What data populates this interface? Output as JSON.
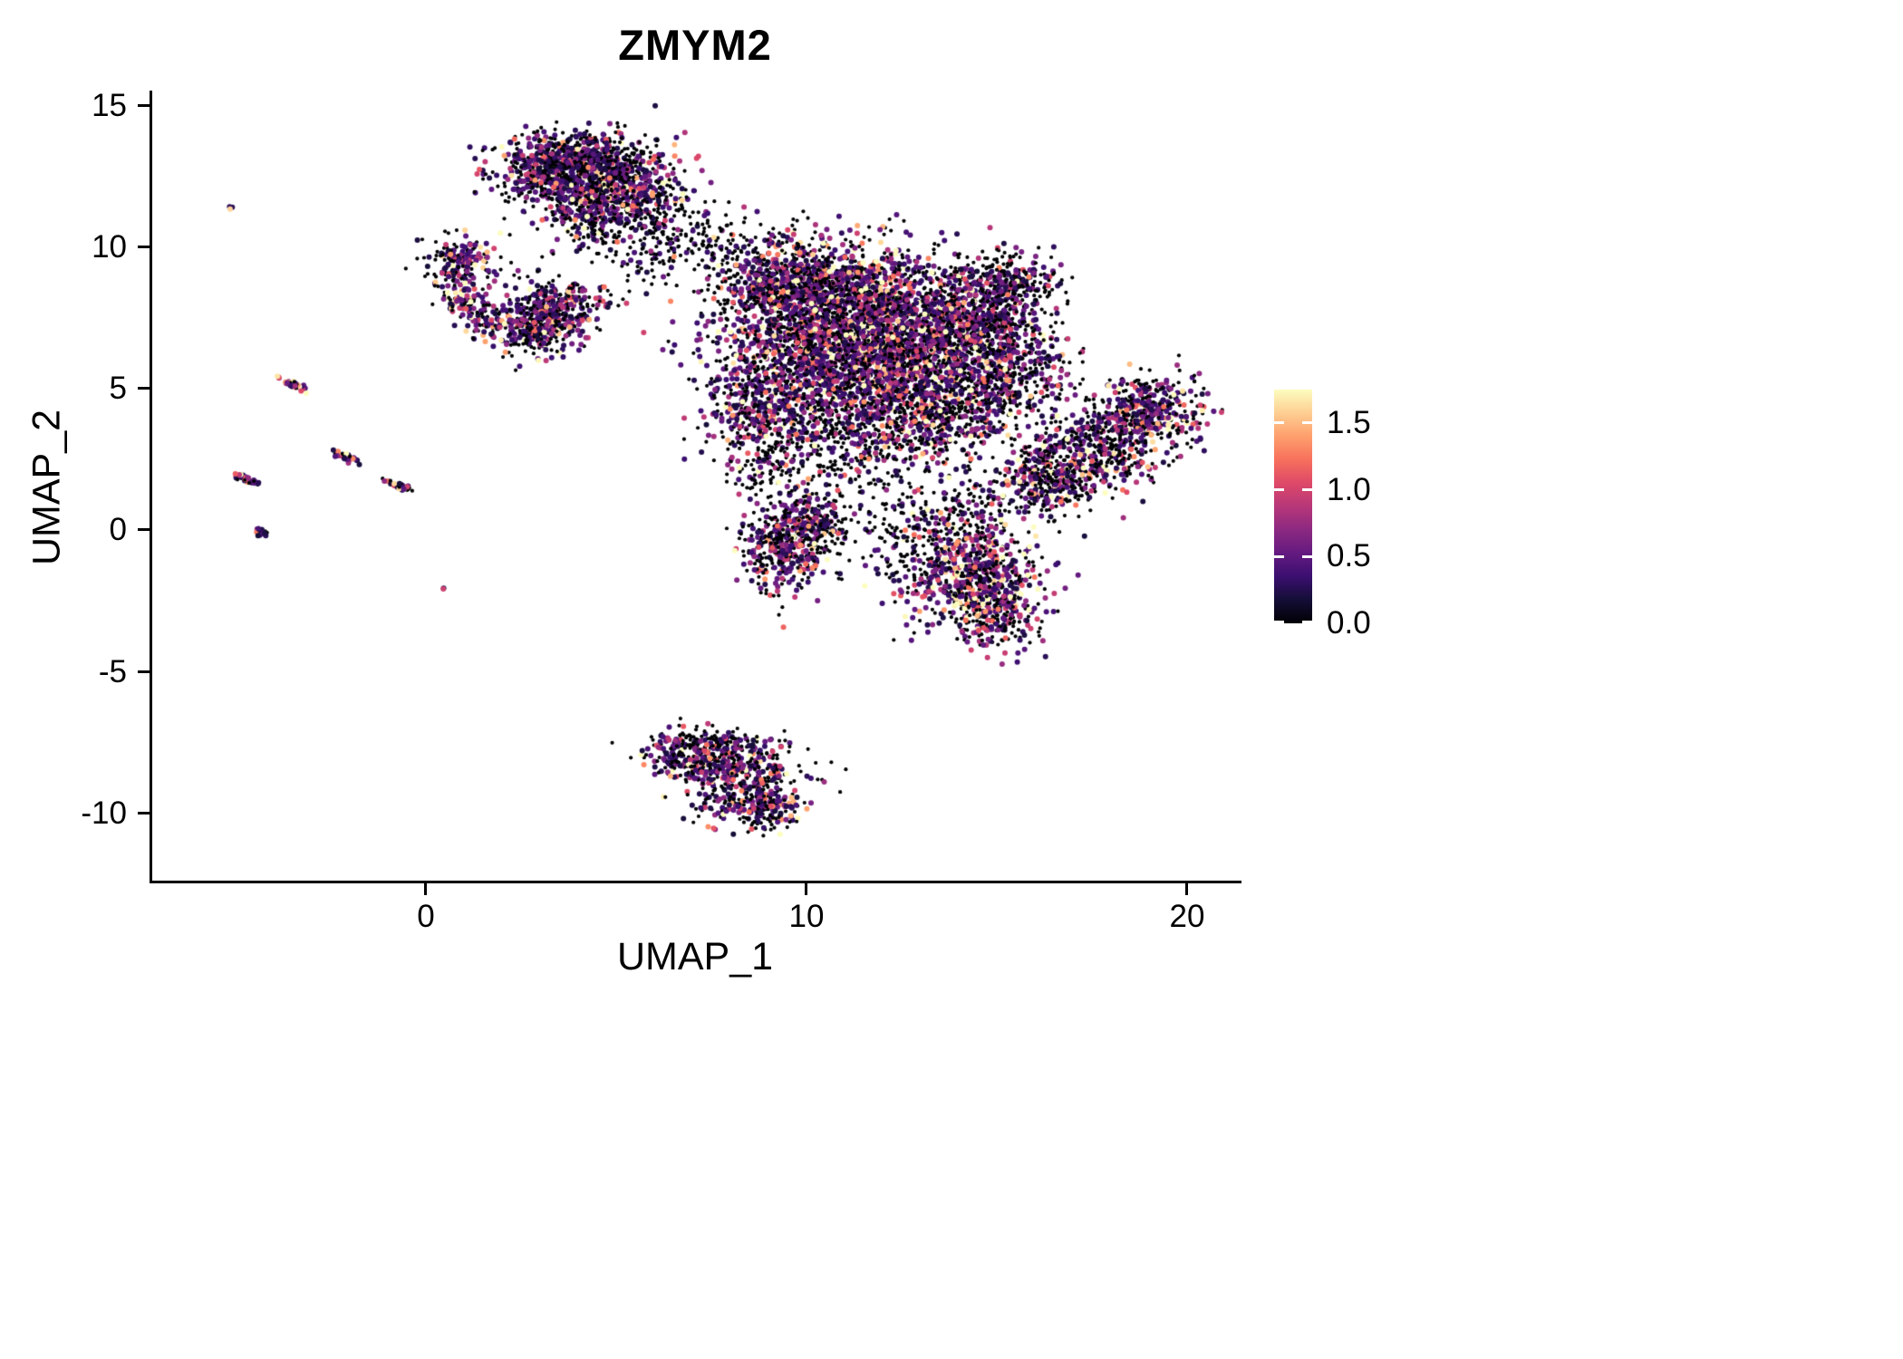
{
  "chart_data": {
    "type": "scatter",
    "title": "ZMYM2",
    "xlabel": "UMAP_1",
    "ylabel": "UMAP_2",
    "xlim": [
      -7.3,
      21.4
    ],
    "ylim": [
      -12.5,
      15.5
    ],
    "grid": false,
    "legend_position": "right",
    "xticks": [
      {
        "value": 0,
        "label": "0"
      },
      {
        "value": 10,
        "label": "10"
      },
      {
        "value": 20,
        "label": "20"
      }
    ],
    "yticks": [
      {
        "value": -10,
        "label": "-10"
      },
      {
        "value": -5,
        "label": "-5"
      },
      {
        "value": 0,
        "label": "0"
      },
      {
        "value": 5,
        "label": "5"
      },
      {
        "value": 10,
        "label": "10"
      },
      {
        "value": 15,
        "label": "15"
      }
    ],
    "colorbar": {
      "vmin": 0,
      "vmax": 1.75,
      "ticks": [
        {
          "value": 0.0,
          "label": "0.0"
        },
        {
          "value": 0.5,
          "label": "0.5"
        },
        {
          "value": 1.0,
          "label": "1.0"
        },
        {
          "value": 1.5,
          "label": "1.5"
        }
      ],
      "colormap": "magma",
      "colormap_stops": [
        [
          0.0,
          "#000004"
        ],
        [
          0.1,
          "#140e36"
        ],
        [
          0.2,
          "#3b0f70"
        ],
        [
          0.3,
          "#641a80"
        ],
        [
          0.4,
          "#8c2981"
        ],
        [
          0.5,
          "#b73779"
        ],
        [
          0.6,
          "#de4968"
        ],
        [
          0.7,
          "#f7705c"
        ],
        [
          0.8,
          "#fe9f6d"
        ],
        [
          0.9,
          "#fece92"
        ],
        [
          1.0,
          "#fcfdbf"
        ]
      ]
    },
    "point_style": {
      "zero_color": "#000004",
      "zero_radius": 2.1,
      "expr_radius": 3.0
    },
    "seed": 42,
    "clusters": [
      {
        "cx": 3.6,
        "cy": 12.6,
        "sx": 1.0,
        "sy": 0.65,
        "rot": -0.2,
        "n": 700,
        "p0": 0.45,
        "escale": 0.45
      },
      {
        "cx": 5.0,
        "cy": 11.9,
        "sx": 0.9,
        "sy": 0.8,
        "rot": 0.3,
        "n": 500,
        "p0": 0.5,
        "escale": 0.45
      },
      {
        "cx": 4.3,
        "cy": 13.2,
        "sx": 0.85,
        "sy": 0.4,
        "rot": 0,
        "n": 220,
        "p0": 0.5,
        "escale": 0.4
      },
      {
        "cx": 6.3,
        "cy": 10.6,
        "sx": 1.1,
        "sy": 0.6,
        "rot": -0.3,
        "n": 130,
        "p0": 0.75,
        "escale": 0.35
      },
      {
        "cx": 4.3,
        "cy": 10.7,
        "sx": 0.7,
        "sy": 0.6,
        "rot": 0,
        "n": 110,
        "p0": 0.7,
        "escale": 0.4
      },
      {
        "cx": 7.5,
        "cy": 10.0,
        "sx": 0.8,
        "sy": 0.5,
        "rot": 0,
        "n": 60,
        "p0": 0.8,
        "escale": 0.3
      },
      {
        "cx": 5.6,
        "cy": 9.3,
        "sx": 0.5,
        "sy": 0.6,
        "rot": 0,
        "n": 40,
        "p0": 0.7,
        "escale": 0.3
      },
      {
        "cx": 0.8,
        "cy": 9.4,
        "sx": 0.45,
        "sy": 0.45,
        "rot": 0,
        "n": 170,
        "p0": 0.45,
        "escale": 0.5
      },
      {
        "cx": 1.0,
        "cy": 8.0,
        "sx": 0.35,
        "sy": 0.35,
        "rot": 0,
        "n": 80,
        "p0": 0.4,
        "escale": 0.6
      },
      {
        "cx": 1.5,
        "cy": 7.3,
        "sx": 0.3,
        "sy": 0.3,
        "rot": 0,
        "n": 50,
        "p0": 0.4,
        "escale": 0.6
      },
      {
        "cx": 3.2,
        "cy": 7.6,
        "sx": 0.75,
        "sy": 0.6,
        "rot": 0.4,
        "n": 420,
        "p0": 0.45,
        "escale": 0.5
      },
      {
        "cx": 2.6,
        "cy": 6.9,
        "sx": 0.4,
        "sy": 0.35,
        "rot": 0,
        "n": 100,
        "p0": 0.5,
        "escale": 0.45
      },
      {
        "cx": 9.4,
        "cy": 8.6,
        "sx": 1.0,
        "sy": 0.9,
        "rot": 0,
        "n": 700,
        "p0": 0.5,
        "escale": 0.5
      },
      {
        "cx": 11.4,
        "cy": 8.2,
        "sx": 1.3,
        "sy": 1.0,
        "rot": 0,
        "n": 950,
        "p0": 0.45,
        "escale": 0.55
      },
      {
        "cx": 10.4,
        "cy": 6.2,
        "sx": 1.4,
        "sy": 1.1,
        "rot": 0,
        "n": 1100,
        "p0": 0.45,
        "escale": 0.5
      },
      {
        "cx": 12.6,
        "cy": 5.8,
        "sx": 1.3,
        "sy": 1.1,
        "rot": 0,
        "n": 950,
        "p0": 0.45,
        "escale": 0.55
      },
      {
        "cx": 13.9,
        "cy": 7.3,
        "sx": 0.9,
        "sy": 1.0,
        "rot": 0,
        "n": 550,
        "p0": 0.45,
        "escale": 0.55
      },
      {
        "cx": 15.3,
        "cy": 7.2,
        "sx": 0.7,
        "sy": 1.1,
        "rot": 0,
        "n": 260,
        "p0": 0.6,
        "escale": 0.5
      },
      {
        "cx": 15.2,
        "cy": 8.8,
        "sx": 0.7,
        "sy": 0.6,
        "rot": 0,
        "n": 200,
        "p0": 0.55,
        "escale": 0.5
      },
      {
        "cx": 8.8,
        "cy": 4.3,
        "sx": 0.8,
        "sy": 0.9,
        "rot": 0,
        "n": 380,
        "p0": 0.5,
        "escale": 0.5
      },
      {
        "cx": 10.9,
        "cy": 3.4,
        "sx": 1.1,
        "sy": 0.8,
        "rot": 0,
        "n": 320,
        "p0": 0.65,
        "escale": 0.45
      },
      {
        "cx": 13.3,
        "cy": 3.8,
        "sx": 1.0,
        "sy": 0.8,
        "rot": 0,
        "n": 380,
        "p0": 0.55,
        "escale": 0.5
      },
      {
        "cx": 14.9,
        "cy": 4.9,
        "sx": 0.6,
        "sy": 0.7,
        "rot": 0,
        "n": 180,
        "p0": 0.55,
        "escale": 0.5
      },
      {
        "cx": 16.2,
        "cy": 5.5,
        "sx": 0.5,
        "sy": 0.8,
        "rot": 0,
        "n": 90,
        "p0": 0.6,
        "escale": 0.5
      },
      {
        "cx": 12.0,
        "cy": 1.2,
        "sx": 1.3,
        "sy": 0.9,
        "rot": 0,
        "n": 160,
        "p0": 0.75,
        "escale": 0.4
      },
      {
        "cx": 14.2,
        "cy": 0.5,
        "sx": 0.8,
        "sy": 0.8,
        "rot": 0,
        "n": 120,
        "p0": 0.7,
        "escale": 0.45
      },
      {
        "cx": 9.0,
        "cy": 2.1,
        "sx": 0.6,
        "sy": 0.5,
        "rot": 0,
        "n": 80,
        "p0": 0.7,
        "escale": 0.4
      },
      {
        "cx": 9.3,
        "cy": -0.6,
        "sx": 0.55,
        "sy": 0.85,
        "rot": 0,
        "n": 380,
        "p0": 0.5,
        "escale": 0.5
      },
      {
        "cx": 10.1,
        "cy": 0.3,
        "sx": 0.5,
        "sy": 0.5,
        "rot": 0,
        "n": 140,
        "p0": 0.55,
        "escale": 0.45
      },
      {
        "cx": 12.5,
        "cy": -0.6,
        "sx": 1.2,
        "sy": 0.7,
        "rot": 0,
        "n": 100,
        "p0": 0.7,
        "escale": 0.45
      },
      {
        "cx": 14.3,
        "cy": -1.7,
        "sx": 0.9,
        "sy": 0.9,
        "rot": 0.3,
        "n": 650,
        "p0": 0.4,
        "escale": 0.6
      },
      {
        "cx": 15.0,
        "cy": -3.0,
        "sx": 0.55,
        "sy": 0.7,
        "rot": 0,
        "n": 180,
        "p0": 0.45,
        "escale": 0.55
      },
      {
        "cx": 17.6,
        "cy": 2.9,
        "sx": 1.6,
        "sy": 0.75,
        "rot": 0.55,
        "n": 750,
        "p0": 0.5,
        "escale": 0.55
      },
      {
        "cx": 18.9,
        "cy": 4.3,
        "sx": 0.55,
        "sy": 0.5,
        "rot": 0,
        "n": 220,
        "p0": 0.45,
        "escale": 0.55
      },
      {
        "cx": 16.4,
        "cy": 1.8,
        "sx": 0.6,
        "sy": 0.5,
        "rot": 0.4,
        "n": 180,
        "p0": 0.55,
        "escale": 0.5
      },
      {
        "cx": 7.1,
        "cy": -8.0,
        "sx": 0.75,
        "sy": 0.45,
        "rot": -0.1,
        "n": 280,
        "p0": 0.55,
        "escale": 0.5
      },
      {
        "cx": 8.3,
        "cy": -9.0,
        "sx": 0.75,
        "sy": 0.75,
        "rot": 0.5,
        "n": 380,
        "p0": 0.5,
        "escale": 0.5
      },
      {
        "cx": 8.9,
        "cy": -9.9,
        "sx": 0.4,
        "sy": 0.35,
        "rot": 0,
        "n": 90,
        "p0": 0.45,
        "escale": 0.55
      },
      {
        "cx": 7.6,
        "cy": -7.5,
        "sx": 0.9,
        "sy": 0.15,
        "rot": 0,
        "n": 70,
        "p0": 0.55,
        "escale": 0.5
      },
      {
        "cx": -3.55,
        "cy": 5.1,
        "sx": 0.22,
        "sy": 0.05,
        "rot": -0.5,
        "n": 45,
        "p0": 0.25,
        "escale": 0.7
      },
      {
        "cx": -2.15,
        "cy": 2.55,
        "sx": 0.18,
        "sy": 0.05,
        "rot": -0.5,
        "n": 40,
        "p0": 0.3,
        "escale": 0.6
      },
      {
        "cx": -4.75,
        "cy": 1.75,
        "sx": 0.18,
        "sy": 0.05,
        "rot": -0.5,
        "n": 35,
        "p0": 0.3,
        "escale": 0.6
      },
      {
        "cx": -0.75,
        "cy": 1.5,
        "sx": 0.22,
        "sy": 0.05,
        "rot": -0.5,
        "n": 45,
        "p0": 0.35,
        "escale": 0.6
      },
      {
        "cx": -4.4,
        "cy": -0.1,
        "sx": 0.1,
        "sy": 0.06,
        "rot": -0.5,
        "n": 18,
        "p0": 0.4,
        "escale": 0.5
      },
      {
        "cx": -5.15,
        "cy": 11.4,
        "sx": 0.05,
        "sy": 0.04,
        "rot": 0,
        "n": 3,
        "p0": 0,
        "escale": 1.2
      },
      {
        "cx": 0.35,
        "cy": -2.1,
        "sx": 0.03,
        "sy": 0.03,
        "rot": 0,
        "n": 2,
        "p0": 0.3,
        "escale": 1.0
      }
    ]
  }
}
